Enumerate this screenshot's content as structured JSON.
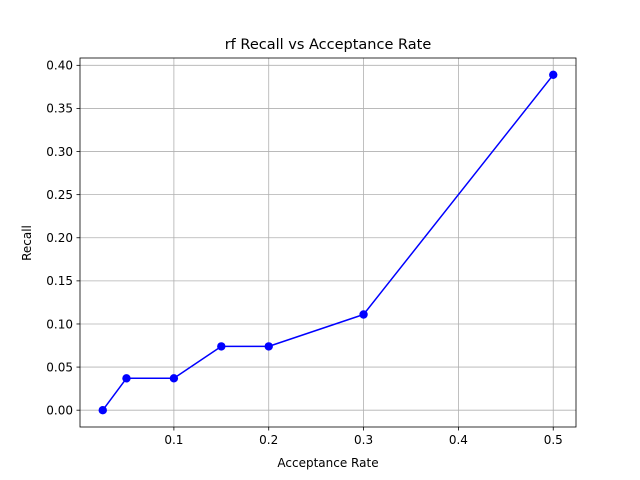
{
  "chart_data": {
    "type": "line",
    "title": "rf Recall vs Acceptance Rate",
    "xlabel": "Acceptance Rate",
    "ylabel": "Recall",
    "x": [
      0.025,
      0.05,
      0.1,
      0.15,
      0.2,
      0.3,
      0.5
    ],
    "series": [
      {
        "values": [
          0.0,
          0.037,
          0.037,
          0.074,
          0.074,
          0.111,
          0.389
        ],
        "color": "#0000ff",
        "marker": "circle"
      }
    ],
    "xlim": [
      0.001,
      0.524
    ],
    "ylim": [
      -0.0195,
      0.4085
    ],
    "xticks": [
      0.1,
      0.2,
      0.3,
      0.4,
      0.5
    ],
    "xtick_labels": [
      "0.1",
      "0.2",
      "0.3",
      "0.4",
      "0.5"
    ],
    "yticks": [
      0.0,
      0.05,
      0.1,
      0.15,
      0.2,
      0.25,
      0.3,
      0.35,
      0.4
    ],
    "ytick_labels": [
      "0.00",
      "0.05",
      "0.10",
      "0.15",
      "0.20",
      "0.25",
      "0.30",
      "0.35",
      "0.40"
    ],
    "grid": true,
    "grid_color": "#b0b0b0",
    "axis_color": "#000000"
  }
}
